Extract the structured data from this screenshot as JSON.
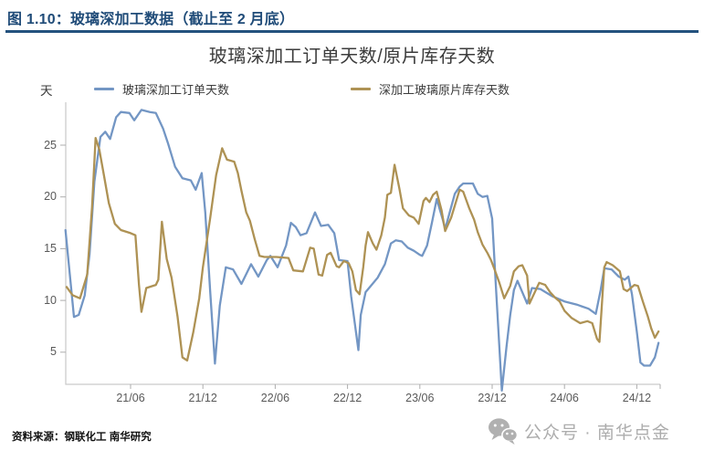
{
  "page": {
    "background": "#FFFFFF",
    "accent_navy": "#1F4B78"
  },
  "header": {
    "title": "图 1.10：玻璃深加工数据（截止至 2 月底）"
  },
  "footer": {
    "source_note": "资料来源：钢联化工 南华研究",
    "wechat_label": "公众号 · 南华点金",
    "wechat_icon": "wechat-icon"
  },
  "chart_data": {
    "type": "line",
    "title": "玻璃深加工订单天数/原片库存天数",
    "y_unit_label": "天",
    "y_ticks": [
      5,
      10,
      15,
      20,
      25
    ],
    "ylim": [
      1,
      29
    ],
    "grid": false,
    "legend_position": "top",
    "axis_color": "#C9C9C9",
    "tick_mark_color": "#ADADAD",
    "tick_label_color": "#595959",
    "x_axis": {
      "unit": "months since 2021-01 (m=0 → 2021-01)",
      "ticks": [
        {
          "m": 5,
          "label": "21/06"
        },
        {
          "m": 11,
          "label": "21/12"
        },
        {
          "m": 17,
          "label": "22/06"
        },
        {
          "m": 23,
          "label": "22/12"
        },
        {
          "m": 29,
          "label": "23/06"
        },
        {
          "m": 35,
          "label": "23/12"
        },
        {
          "m": 41,
          "label": "24/06"
        },
        {
          "m": 47,
          "label": "24/12"
        }
      ]
    },
    "series": [
      {
        "name": "玻璃深加工订单天数",
        "color": "#7396C4",
        "data_name": "series-line-order-days",
        "points": [
          [
            -0.4,
            16.8
          ],
          [
            0.3,
            8.4
          ],
          [
            0.7,
            8.6
          ],
          [
            1.2,
            10.5
          ],
          [
            1.6,
            14.5
          ],
          [
            2.0,
            21.5
          ],
          [
            2.5,
            25.8
          ],
          [
            2.9,
            26.3
          ],
          [
            3.3,
            25.6
          ],
          [
            3.8,
            27.7
          ],
          [
            4.2,
            28.2
          ],
          [
            4.9,
            28.1
          ],
          [
            5.3,
            27.4
          ],
          [
            5.9,
            28.4
          ],
          [
            6.6,
            28.2
          ],
          [
            7.1,
            28.1
          ],
          [
            7.7,
            26.6
          ],
          [
            8.1,
            25.2
          ],
          [
            8.7,
            22.9
          ],
          [
            9.3,
            21.8
          ],
          [
            10.0,
            21.6
          ],
          [
            10.4,
            20.7
          ],
          [
            10.9,
            22.3
          ],
          [
            11.2,
            18.5
          ],
          [
            11.6,
            11.0
          ],
          [
            12.0,
            3.9
          ],
          [
            12.4,
            9.5
          ],
          [
            12.9,
            13.2
          ],
          [
            13.5,
            13.0
          ],
          [
            14.2,
            11.6
          ],
          [
            15.0,
            13.5
          ],
          [
            15.6,
            12.3
          ],
          [
            16.3,
            13.9
          ],
          [
            16.6,
            14.3
          ],
          [
            17.2,
            13.2
          ],
          [
            17.9,
            15.3
          ],
          [
            18.3,
            17.5
          ],
          [
            18.7,
            17.1
          ],
          [
            19.1,
            16.3
          ],
          [
            19.6,
            16.5
          ],
          [
            20.3,
            18.5
          ],
          [
            20.8,
            17.2
          ],
          [
            21.4,
            17.3
          ],
          [
            21.9,
            16.5
          ],
          [
            22.3,
            13.9
          ],
          [
            23.0,
            13.8
          ],
          [
            23.3,
            10.4
          ],
          [
            23.9,
            5.2
          ],
          [
            24.1,
            8.6
          ],
          [
            24.5,
            10.8
          ],
          [
            25.0,
            11.5
          ],
          [
            25.5,
            12.2
          ],
          [
            26.1,
            13.5
          ],
          [
            26.6,
            15.5
          ],
          [
            27.0,
            15.8
          ],
          [
            27.5,
            15.7
          ],
          [
            28.0,
            15.1
          ],
          [
            28.5,
            14.8
          ],
          [
            29.0,
            14.4
          ],
          [
            29.2,
            14.3
          ],
          [
            29.6,
            15.3
          ],
          [
            30.0,
            17.5
          ],
          [
            30.4,
            19.8
          ],
          [
            30.9,
            17.8
          ],
          [
            31.1,
            16.9
          ],
          [
            31.5,
            18.6
          ],
          [
            31.9,
            20.3
          ],
          [
            32.3,
            21.0
          ],
          [
            32.6,
            21.3
          ],
          [
            33.4,
            21.3
          ],
          [
            33.8,
            20.3
          ],
          [
            34.2,
            20.0
          ],
          [
            34.6,
            20.1
          ],
          [
            35.0,
            17.9
          ],
          [
            35.3,
            11.5
          ],
          [
            35.8,
            1.3
          ],
          [
            36.2,
            5.6
          ],
          [
            36.5,
            8.6
          ],
          [
            36.8,
            11.0
          ],
          [
            37.1,
            11.9
          ],
          [
            37.9,
            9.7
          ],
          [
            38.3,
            11.2
          ],
          [
            39.0,
            11.1
          ],
          [
            40.0,
            10.4
          ],
          [
            41.0,
            9.9
          ],
          [
            42.0,
            9.6
          ],
          [
            43.0,
            9.2
          ],
          [
            43.6,
            8.7
          ],
          [
            44.0,
            11.0
          ],
          [
            44.3,
            13.1
          ],
          [
            44.9,
            13.0
          ],
          [
            45.5,
            12.3
          ],
          [
            46.0,
            12.0
          ],
          [
            46.3,
            12.3
          ],
          [
            46.6,
            10.6
          ],
          [
            47.0,
            7.0
          ],
          [
            47.3,
            4.0
          ],
          [
            47.6,
            3.7
          ],
          [
            48.1,
            3.7
          ],
          [
            48.5,
            4.5
          ],
          [
            48.8,
            5.9
          ]
        ]
      },
      {
        "name": "深加工玻璃原片库存天数",
        "color": "#AE9254",
        "data_name": "series-line-inventory-days",
        "points": [
          [
            -0.3,
            11.3
          ],
          [
            0.2,
            10.5
          ],
          [
            0.8,
            10.2
          ],
          [
            1.4,
            12.5
          ],
          [
            1.8,
            19.0
          ],
          [
            2.1,
            25.7
          ],
          [
            2.4,
            24.6
          ],
          [
            2.8,
            22.0
          ],
          [
            3.2,
            19.4
          ],
          [
            3.7,
            17.4
          ],
          [
            4.2,
            16.8
          ],
          [
            5.0,
            16.5
          ],
          [
            5.4,
            16.3
          ],
          [
            5.7,
            11.5
          ],
          [
            5.9,
            8.9
          ],
          [
            6.3,
            11.2
          ],
          [
            7.1,
            11.5
          ],
          [
            7.3,
            12.0
          ],
          [
            7.6,
            17.6
          ],
          [
            8.0,
            14.0
          ],
          [
            8.4,
            12.2
          ],
          [
            8.9,
            8.4
          ],
          [
            9.3,
            4.5
          ],
          [
            9.7,
            4.2
          ],
          [
            10.2,
            6.9
          ],
          [
            10.7,
            10.2
          ],
          [
            11.0,
            13.2
          ],
          [
            11.6,
            17.9
          ],
          [
            12.1,
            22.1
          ],
          [
            12.6,
            24.7
          ],
          [
            13.0,
            23.6
          ],
          [
            13.6,
            23.4
          ],
          [
            13.9,
            22.3
          ],
          [
            14.2,
            20.6
          ],
          [
            14.6,
            18.5
          ],
          [
            14.9,
            17.7
          ],
          [
            15.3,
            15.9
          ],
          [
            15.7,
            14.3
          ],
          [
            16.1,
            14.2
          ],
          [
            17.1,
            14.2
          ],
          [
            18.1,
            14.1
          ],
          [
            18.5,
            12.9
          ],
          [
            19.3,
            12.8
          ],
          [
            19.9,
            15.1
          ],
          [
            20.2,
            15.0
          ],
          [
            20.6,
            12.5
          ],
          [
            20.9,
            12.4
          ],
          [
            21.3,
            14.4
          ],
          [
            21.6,
            14.6
          ],
          [
            22.1,
            13.3
          ],
          [
            22.3,
            13.2
          ],
          [
            22.7,
            13.8
          ],
          [
            23.1,
            13.6
          ],
          [
            23.4,
            12.8
          ],
          [
            23.7,
            11.0
          ],
          [
            24.0,
            10.6
          ],
          [
            24.3,
            13.2
          ],
          [
            24.5,
            15.3
          ],
          [
            24.7,
            16.6
          ],
          [
            25.1,
            15.5
          ],
          [
            25.4,
            14.9
          ],
          [
            25.8,
            16.3
          ],
          [
            26.1,
            18.0
          ],
          [
            26.3,
            20.2
          ],
          [
            26.6,
            20.4
          ],
          [
            26.9,
            23.1
          ],
          [
            27.3,
            20.8
          ],
          [
            27.6,
            18.9
          ],
          [
            28.1,
            18.2
          ],
          [
            28.5,
            18.0
          ],
          [
            28.9,
            17.4
          ],
          [
            29.3,
            19.6
          ],
          [
            29.5,
            19.9
          ],
          [
            29.8,
            19.5
          ],
          [
            30.1,
            20.2
          ],
          [
            30.4,
            20.5
          ],
          [
            30.8,
            18.7
          ],
          [
            31.1,
            16.7
          ],
          [
            31.6,
            18.0
          ],
          [
            32.3,
            20.7
          ],
          [
            32.6,
            20.5
          ],
          [
            33.1,
            18.9
          ],
          [
            33.5,
            17.8
          ],
          [
            33.8,
            16.6
          ],
          [
            34.2,
            15.4
          ],
          [
            34.6,
            14.6
          ],
          [
            34.9,
            13.9
          ],
          [
            35.2,
            13.0
          ],
          [
            35.6,
            11.7
          ],
          [
            36.0,
            10.2
          ],
          [
            36.5,
            11.4
          ],
          [
            36.8,
            12.8
          ],
          [
            37.2,
            13.3
          ],
          [
            37.5,
            13.4
          ],
          [
            37.9,
            12.4
          ],
          [
            38.1,
            9.7
          ],
          [
            38.9,
            11.7
          ],
          [
            39.4,
            11.5
          ],
          [
            39.8,
            10.8
          ],
          [
            40.2,
            10.3
          ],
          [
            40.6,
            9.9
          ],
          [
            41.0,
            9.0
          ],
          [
            41.6,
            8.3
          ],
          [
            42.3,
            7.8
          ],
          [
            42.9,
            8.0
          ],
          [
            43.3,
            7.8
          ],
          [
            43.7,
            6.3
          ],
          [
            43.9,
            6.0
          ],
          [
            44.1,
            9.5
          ],
          [
            44.3,
            13.2
          ],
          [
            44.5,
            13.7
          ],
          [
            45.0,
            13.4
          ],
          [
            45.3,
            13.1
          ],
          [
            45.6,
            12.8
          ],
          [
            45.9,
            11.1
          ],
          [
            46.2,
            10.9
          ],
          [
            46.5,
            11.2
          ],
          [
            46.8,
            11.5
          ],
          [
            47.1,
            11.4
          ],
          [
            47.5,
            9.9
          ],
          [
            47.9,
            8.5
          ],
          [
            48.2,
            7.3
          ],
          [
            48.5,
            6.4
          ],
          [
            48.8,
            7.0
          ]
        ]
      }
    ]
  }
}
